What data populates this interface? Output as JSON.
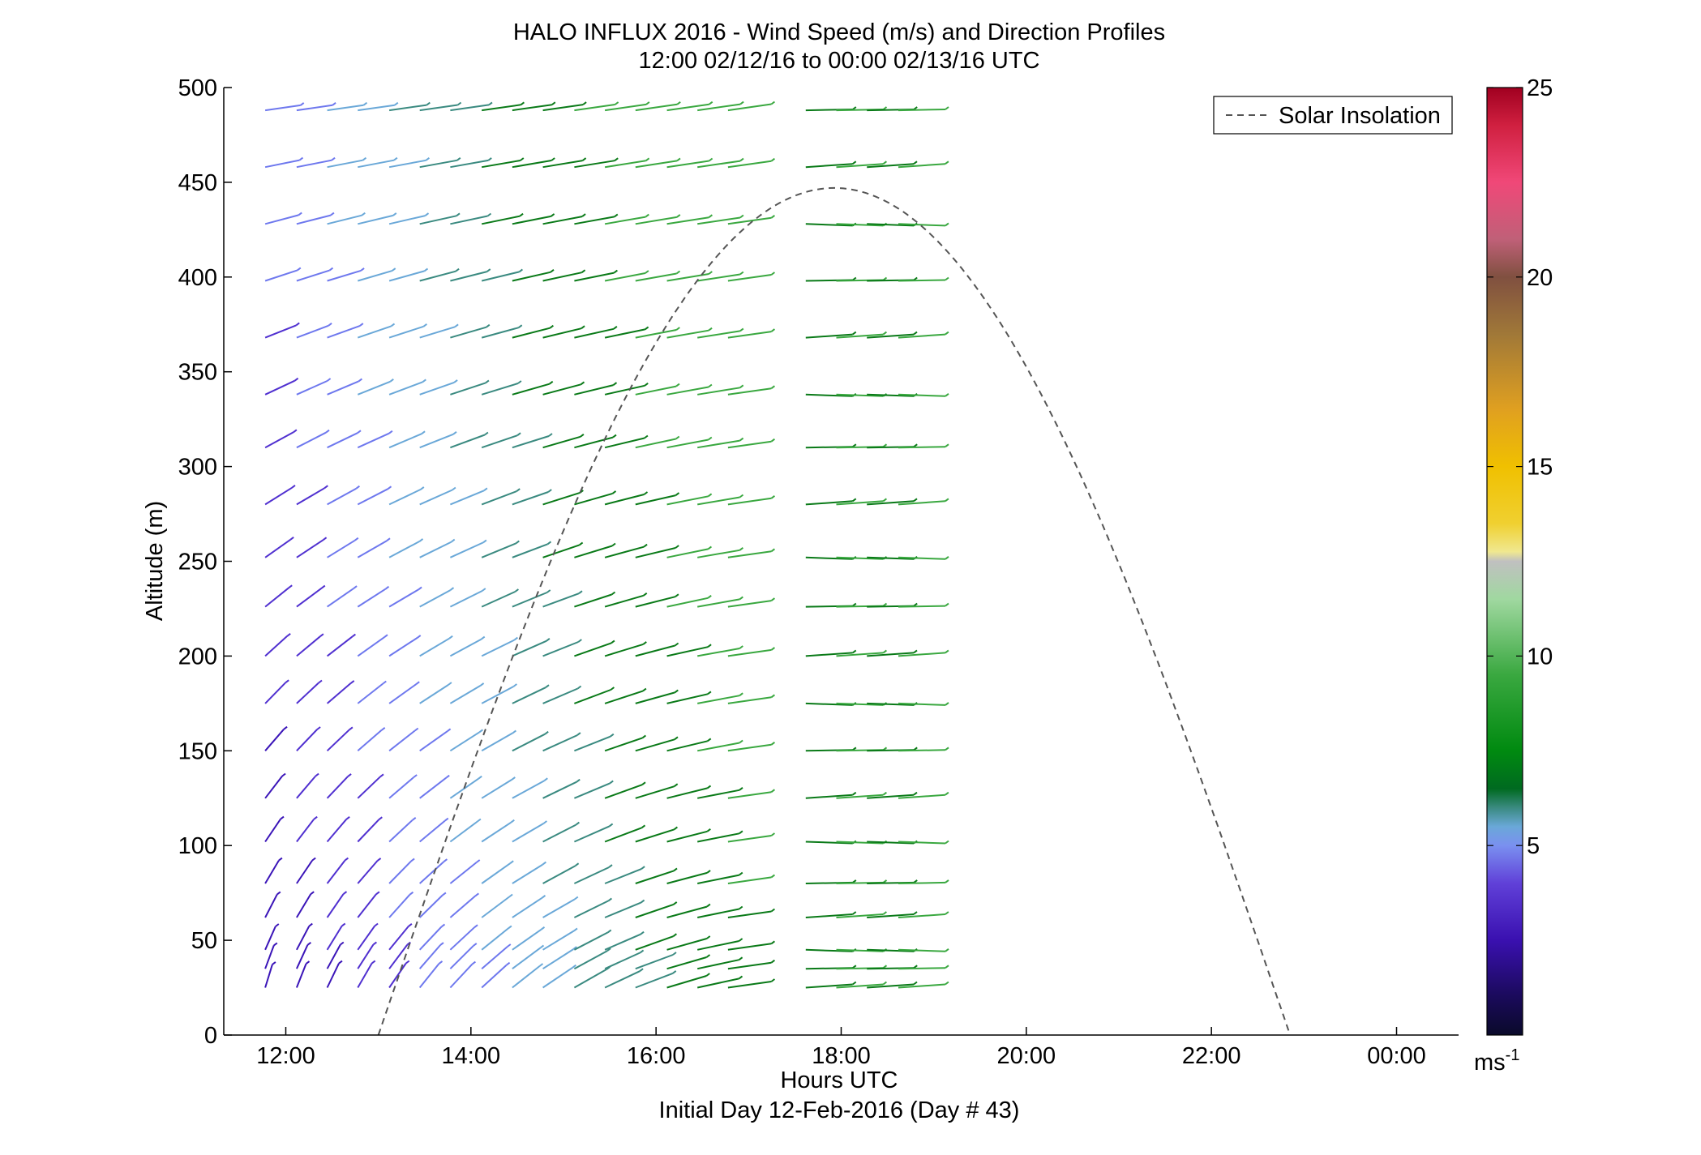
{
  "chart_data": {
    "type": "wind-barb-profile",
    "title": "HALO INFLUX 2016 - Wind Speed (m/s) and Direction Profiles",
    "subtitle": "12:00 02/12/16 to 00:00 02/13/16  UTC",
    "xlabel": "Hours UTC",
    "xlabel2": "Initial Day 12-Feb-2016 (Day # 43)",
    "ylabel": "Altitude (m)",
    "xlim": [
      11.33,
      24.67
    ],
    "ylim": [
      0,
      500
    ],
    "x_ticks": [
      {
        "value": 12,
        "label": "12:00"
      },
      {
        "value": 14,
        "label": "14:00"
      },
      {
        "value": 16,
        "label": "16:00"
      },
      {
        "value": 18,
        "label": "18:00"
      },
      {
        "value": 20,
        "label": "20:00"
      },
      {
        "value": 22,
        "label": "22:00"
      },
      {
        "value": 24,
        "label": "00:00"
      }
    ],
    "y_ticks": [
      0,
      50,
      100,
      150,
      200,
      250,
      300,
      350,
      400,
      450,
      500
    ],
    "colorbar": {
      "min": 0,
      "max": 25,
      "ticks": [
        5,
        10,
        15,
        20,
        25
      ],
      "unit_label": "ms",
      "unit_exponent": "-1"
    },
    "legend": {
      "label": "Solar Insolation",
      "position": "top-right"
    },
    "solar_insolation": {
      "start_hour": 13.0,
      "end_hour": 22.85,
      "peak_hour": 17.92,
      "peak_altitude": 447
    },
    "barb_times": [
      11.83,
      12.17,
      12.5,
      12.83,
      13.17,
      13.5,
      13.83,
      14.17,
      14.5,
      14.83,
      15.17,
      15.5,
      15.83,
      16.17,
      16.5,
      16.83,
      17.67,
      18.0,
      18.33,
      18.67
    ],
    "barb_altitudes": [
      25,
      35,
      45,
      62,
      80,
      102,
      125,
      150,
      175,
      200,
      226,
      252,
      280,
      310,
      338,
      368,
      398,
      428,
      458,
      488
    ]
  },
  "colors": {
    "axes": "#000000",
    "insolation": "#555555",
    "background": "#ffffff"
  }
}
